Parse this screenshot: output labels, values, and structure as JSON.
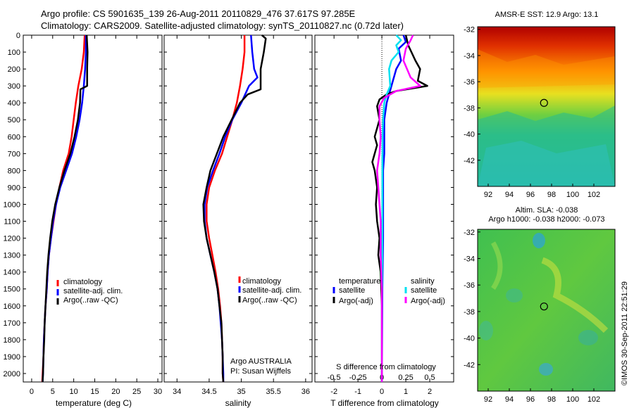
{
  "header": {
    "line1": "Argo profile: CS 5901635_139 26-Aug-2011 20110829_476 37.617S 97.285E",
    "line2": "Climatology: CARS2009. Satellite-adjusted climatology: synTS_20110827.nc (0.72d later)"
  },
  "footer_stamp": "©IMOS 30-Sep-2011 22:51:29",
  "colors": {
    "climatology": "#ff0000",
    "satellite": "#0000ff",
    "argo": "#000000",
    "salinity_satellite": "#00e0f0",
    "salinity_argo": "#ff00ff"
  },
  "chart_data": [
    {
      "type": "line",
      "xlabel": "temperature (deg C)",
      "ylabel": "",
      "xlim": [
        -2,
        31
      ],
      "ylim": [
        2050,
        0
      ],
      "xticks": [
        0,
        5,
        10,
        15,
        20,
        25,
        30
      ],
      "yticks": [
        0,
        100,
        200,
        300,
        400,
        500,
        600,
        700,
        800,
        900,
        1000,
        1100,
        1200,
        1300,
        1400,
        1500,
        1600,
        1700,
        1800,
        1900,
        2000
      ],
      "legend": [
        "climatology",
        "satellite-adj. clim.",
        "Argo(..raw -QC)"
      ],
      "series": [
        {
          "name": "climatology",
          "color": "#ff0000",
          "points": [
            [
              12.6,
              0
            ],
            [
              12.4,
              100
            ],
            [
              11.9,
              200
            ],
            [
              11.1,
              300
            ],
            [
              10.5,
              400
            ],
            [
              10,
              500
            ],
            [
              9.5,
              600
            ],
            [
              8.8,
              700
            ],
            [
              7.5,
              800
            ],
            [
              6.6,
              900
            ],
            [
              5.8,
              1000
            ],
            [
              5.2,
              1100
            ],
            [
              4.6,
              1200
            ],
            [
              4.1,
              1300
            ],
            [
              3.8,
              1400
            ],
            [
              3.6,
              1500
            ],
            [
              3.3,
              1600
            ],
            [
              3.1,
              1700
            ],
            [
              2.9,
              1800
            ],
            [
              2.8,
              1900
            ],
            [
              2.6,
              2000
            ],
            [
              2.5,
              2050
            ]
          ]
        },
        {
          "name": "satellite-adj. clim.",
          "color": "#0000ff",
          "points": [
            [
              12.9,
              0
            ],
            [
              12.9,
              100
            ],
            [
              12.7,
              200
            ],
            [
              12.4,
              300
            ],
            [
              12,
              400
            ],
            [
              11.4,
              500
            ],
            [
              10.6,
              600
            ],
            [
              9.6,
              700
            ],
            [
              8.2,
              800
            ],
            [
              6.8,
              900
            ],
            [
              5.8,
              1000
            ],
            [
              5.1,
              1100
            ],
            [
              4.6,
              1200
            ],
            [
              4.1,
              1300
            ],
            [
              3.8,
              1400
            ],
            [
              3.6,
              1500
            ],
            [
              3.3,
              1600
            ],
            [
              3.1,
              1700
            ],
            [
              2.9,
              1800
            ],
            [
              2.8,
              1900
            ],
            [
              2.7,
              2000
            ],
            [
              2.6,
              2050
            ]
          ]
        },
        {
          "name": "Argo(..raw -QC)",
          "color": "#000000",
          "points": [
            [
              13.1,
              0
            ],
            [
              13.3,
              100
            ],
            [
              13.2,
              200
            ],
            [
              13.2,
              300
            ],
            [
              11.6,
              320
            ],
            [
              11.5,
              400
            ],
            [
              11,
              500
            ],
            [
              10.2,
              600
            ],
            [
              9.2,
              700
            ],
            [
              7.8,
              800
            ],
            [
              6.6,
              900
            ],
            [
              5.6,
              1000
            ],
            [
              4.9,
              1100
            ],
            [
              4.4,
              1200
            ],
            [
              4,
              1300
            ],
            [
              3.7,
              1400
            ],
            [
              3.5,
              1500
            ],
            [
              3.3,
              1600
            ],
            [
              3.1,
              1700
            ],
            [
              3,
              1800
            ],
            [
              2.8,
              1900
            ],
            [
              2.7,
              2000
            ],
            [
              2.6,
              2050
            ]
          ]
        }
      ]
    },
    {
      "type": "line",
      "xlabel": "salinity",
      "xlim": [
        33.8,
        36.1
      ],
      "ylim": [
        2050,
        0
      ],
      "xticks": [
        34,
        34.5,
        35,
        35.5,
        36
      ],
      "legend": [
        "climatology",
        "satellite-adj. clim.",
        "Argo(..raw -QC)"
      ],
      "annotations": [
        "Argo AUSTRALIA",
        "PI: Susan Wijffels"
      ],
      "series": [
        {
          "name": "climatology",
          "color": "#ff0000",
          "points": [
            [
              35.05,
              0
            ],
            [
              35.05,
              100
            ],
            [
              35.02,
              200
            ],
            [
              34.98,
              300
            ],
            [
              34.93,
              400
            ],
            [
              34.86,
              500
            ],
            [
              34.78,
              600
            ],
            [
              34.7,
              700
            ],
            [
              34.59,
              800
            ],
            [
              34.5,
              900
            ],
            [
              34.46,
              1000
            ],
            [
              34.46,
              1100
            ],
            [
              34.5,
              1200
            ],
            [
              34.55,
              1300
            ],
            [
              34.6,
              1400
            ],
            [
              34.64,
              1500
            ],
            [
              34.67,
              1600
            ],
            [
              34.69,
              1700
            ],
            [
              34.7,
              1800
            ],
            [
              34.71,
              1900
            ],
            [
              34.71,
              2000
            ],
            [
              34.72,
              2050
            ]
          ]
        },
        {
          "name": "satellite-adj. clim.",
          "color": "#0000ff",
          "points": [
            [
              35.15,
              0
            ],
            [
              35.17,
              100
            ],
            [
              35.2,
              200
            ],
            [
              35.25,
              250
            ],
            [
              35.12,
              300
            ],
            [
              35.0,
              400
            ],
            [
              34.86,
              500
            ],
            [
              34.75,
              600
            ],
            [
              34.66,
              700
            ],
            [
              34.56,
              800
            ],
            [
              34.47,
              900
            ],
            [
              34.43,
              1000
            ],
            [
              34.43,
              1100
            ],
            [
              34.46,
              1200
            ],
            [
              34.52,
              1300
            ],
            [
              34.58,
              1400
            ],
            [
              34.63,
              1500
            ],
            [
              34.66,
              1600
            ],
            [
              34.68,
              1700
            ],
            [
              34.7,
              1800
            ],
            [
              34.71,
              1900
            ],
            [
              34.72,
              2000
            ],
            [
              34.72,
              2050
            ]
          ]
        },
        {
          "name": "Argo(..raw -QC)",
          "color": "#000000",
          "points": [
            [
              35.32,
              0
            ],
            [
              35.38,
              20
            ],
            [
              35.35,
              100
            ],
            [
              35.3,
              200
            ],
            [
              35.3,
              320
            ],
            [
              35.1,
              350
            ],
            [
              34.98,
              400
            ],
            [
              34.85,
              500
            ],
            [
              34.72,
              600
            ],
            [
              34.62,
              700
            ],
            [
              34.52,
              800
            ],
            [
              34.46,
              900
            ],
            [
              34.41,
              1000
            ],
            [
              34.42,
              1100
            ],
            [
              34.46,
              1200
            ],
            [
              34.52,
              1300
            ],
            [
              34.58,
              1400
            ],
            [
              34.63,
              1500
            ],
            [
              34.66,
              1600
            ],
            [
              34.69,
              1700
            ],
            [
              34.7,
              1800
            ],
            [
              34.71,
              1900
            ],
            [
              34.71,
              2000
            ],
            [
              34.72,
              2050
            ]
          ]
        }
      ]
    },
    {
      "type": "line",
      "xlabel": "T difference from climatology",
      "top_xlabel": "S difference from climatology",
      "xlim": [
        -2.8,
        3.0
      ],
      "ylim": [
        2050,
        0
      ],
      "xticks": [
        -2,
        -1,
        0,
        1,
        2
      ],
      "top_xticks": [
        "-0.5",
        "-0.25",
        "0",
        "0.25",
        "0.5"
      ],
      "legend": [
        {
          "group": "temperature",
          "items": [
            "satellite",
            "Argo(-adj)"
          ]
        },
        {
          "group": "salinity",
          "items": [
            "satellite",
            "Argo(-adj)"
          ]
        }
      ],
      "series": [
        {
          "name": "T satellite",
          "color": "#0000ff",
          "points": [
            [
              0.9,
              0
            ],
            [
              1.0,
              40
            ],
            [
              0.7,
              80
            ],
            [
              0.8,
              150
            ],
            [
              0.6,
              200
            ],
            [
              0.4,
              300
            ],
            [
              0.2,
              400
            ],
            [
              0.1,
              500
            ],
            [
              0.1,
              700
            ],
            [
              0.05,
              800
            ],
            [
              0.05,
              1000
            ],
            [
              0.05,
              1200
            ],
            [
              0.02,
              1500
            ],
            [
              0,
              2050
            ]
          ]
        },
        {
          "name": "T Argo(-adj)",
          "color": "#000000",
          "points": [
            [
              1.0,
              0
            ],
            [
              1.1,
              60
            ],
            [
              1.4,
              150
            ],
            [
              1.6,
              200
            ],
            [
              1.5,
              270
            ],
            [
              1.9,
              300
            ],
            [
              0.6,
              330
            ],
            [
              0.2,
              350
            ],
            [
              -0.1,
              380
            ],
            [
              -0.2,
              420
            ],
            [
              -0.1,
              500
            ],
            [
              -0.3,
              600
            ],
            [
              -0.2,
              650
            ],
            [
              -0.3,
              700
            ],
            [
              -0.4,
              750
            ],
            [
              -0.3,
              800
            ],
            [
              -0.2,
              900
            ],
            [
              -0.25,
              1000
            ],
            [
              -0.2,
              1100
            ],
            [
              -0.1,
              1200
            ],
            [
              -0.15,
              1300
            ],
            [
              -0.05,
              1400
            ],
            [
              0,
              1600
            ],
            [
              0,
              2050
            ]
          ]
        },
        {
          "name": "S satellite",
          "color": "#00e0f0",
          "points": [
            [
              0.6,
              0
            ],
            [
              0.8,
              30
            ],
            [
              0.6,
              60
            ],
            [
              0.7,
              100
            ],
            [
              0.4,
              150
            ],
            [
              0.3,
              200
            ],
            [
              0.35,
              300
            ],
            [
              0.2,
              350
            ],
            [
              0.1,
              400
            ],
            [
              0.05,
              500
            ],
            [
              0.03,
              600
            ],
            [
              0.02,
              800
            ],
            [
              0.02,
              1200
            ],
            [
              0,
              1600
            ],
            [
              0,
              2050
            ]
          ]
        },
        {
          "name": "S Argo(-adj)",
          "color": "#ff00ff",
          "points": [
            [
              1.3,
              0
            ],
            [
              1.2,
              30
            ],
            [
              1.0,
              80
            ],
            [
              0.9,
              150
            ],
            [
              1.2,
              250
            ],
            [
              1.6,
              300
            ],
            [
              0.6,
              330
            ],
            [
              0.1,
              370
            ],
            [
              -0.1,
              420
            ],
            [
              -0.1,
              500
            ],
            [
              -0.05,
              600
            ],
            [
              -0.1,
              700
            ],
            [
              -0.2,
              800
            ],
            [
              -0.15,
              900
            ],
            [
              -0.1,
              1000
            ],
            [
              -0.05,
              1100
            ],
            [
              -0.05,
              1300
            ],
            [
              0,
              1500
            ],
            [
              0,
              2050
            ]
          ]
        }
      ]
    },
    {
      "type": "heatmap",
      "title": "AMSR-E SST: 12.9  Argo: 13.1",
      "xticks": [
        92,
        94,
        96,
        98,
        100,
        102
      ],
      "yticks": [
        -32,
        -34,
        -36,
        -38,
        -40,
        -42
      ],
      "xlim": [
        91,
        104
      ],
      "ylim": [
        -44,
        -31.8
      ],
      "marker": [
        97.285,
        -37.617
      ]
    },
    {
      "type": "heatmap",
      "title": "Altim. SLA: -0.038",
      "subtitle": "Argo h1000: -0.038 h2000: -0.073",
      "xticks": [
        92,
        94,
        96,
        98,
        100,
        102
      ],
      "yticks": [
        -32,
        -34,
        -36,
        -38,
        -40,
        -42
      ],
      "xlim": [
        91,
        104
      ],
      "ylim": [
        -44,
        -31.8
      ],
      "marker": [
        97.285,
        -37.617
      ]
    }
  ]
}
